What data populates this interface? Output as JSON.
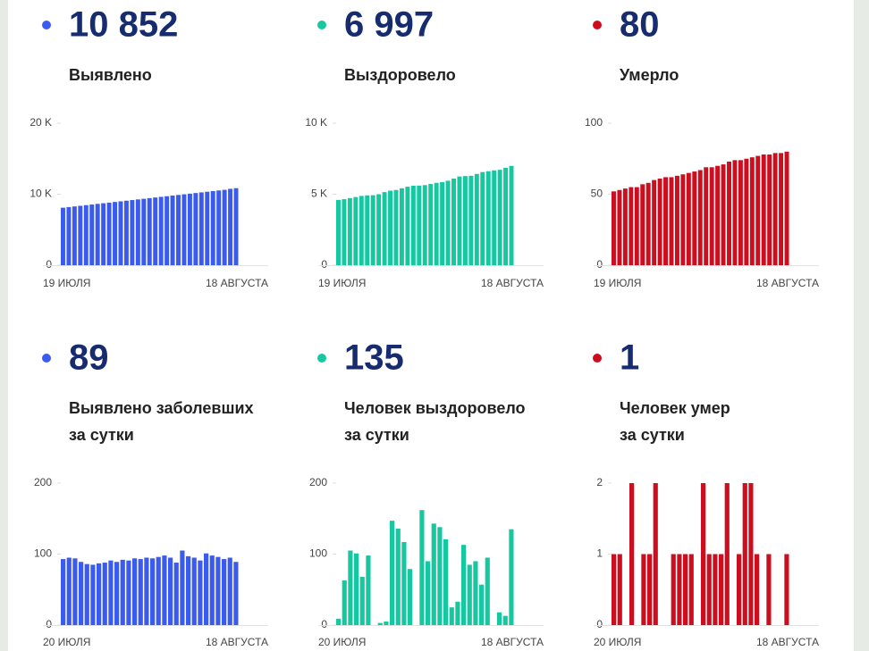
{
  "chart_data": [
    {
      "type": "bar",
      "headline": "10 852",
      "title_lines": [
        "Выявлено"
      ],
      "color": "#3b5bef",
      "categories": [
        "19 ИЮЛЯ",
        null,
        null,
        null,
        null,
        null,
        null,
        null,
        null,
        null,
        null,
        null,
        null,
        null,
        null,
        null,
        null,
        null,
        null,
        null,
        null,
        null,
        null,
        null,
        null,
        null,
        null,
        null,
        null,
        null,
        "18 АВГУСТА"
      ],
      "values": [
        8100,
        8190,
        8280,
        8370,
        8460,
        8550,
        8640,
        8730,
        8820,
        8910,
        9000,
        9090,
        9180,
        9270,
        9360,
        9450,
        9540,
        9630,
        9720,
        9810,
        9900,
        9990,
        10080,
        10170,
        10260,
        10350,
        10440,
        10530,
        10620,
        10763,
        10852
      ],
      "ylim": [
        0,
        20000
      ],
      "yticks": [
        0,
        {
          "value": 10000,
          "label": "10 K"
        },
        {
          "value": 20000,
          "label": "20 K"
        }
      ]
    },
    {
      "type": "bar",
      "headline": "6 997",
      "title_lines": [
        "Выздоровело"
      ],
      "color": "#15c8a0",
      "categories": [
        "19 ИЮЛЯ",
        null,
        null,
        null,
        null,
        null,
        null,
        null,
        null,
        null,
        null,
        null,
        null,
        null,
        null,
        null,
        null,
        null,
        null,
        null,
        null,
        null,
        null,
        null,
        null,
        null,
        null,
        null,
        null,
        null,
        "18 АВГУСТА"
      ],
      "values": [
        4600,
        4650,
        4720,
        4800,
        4880,
        4920,
        4930,
        5000,
        5150,
        5250,
        5300,
        5420,
        5530,
        5600,
        5610,
        5640,
        5720,
        5800,
        5850,
        5950,
        6100,
        6250,
        6280,
        6300,
        6430,
        6560,
        6620,
        6680,
        6720,
        6862,
        6997
      ],
      "ylim": [
        0,
        10000
      ],
      "yticks": [
        0,
        {
          "value": 5000,
          "label": "5 K"
        },
        {
          "value": 10000,
          "label": "10 K"
        }
      ]
    },
    {
      "type": "bar",
      "headline": "80",
      "title_lines": [
        "Умерло"
      ],
      "color": "#cc0e1e",
      "categories": [
        "19 ИЮЛЯ",
        null,
        null,
        null,
        null,
        null,
        null,
        null,
        null,
        null,
        null,
        null,
        null,
        null,
        null,
        null,
        null,
        null,
        null,
        null,
        null,
        null,
        null,
        null,
        null,
        null,
        null,
        null,
        null,
        null,
        "18 АВГУСТА"
      ],
      "values": [
        52,
        53,
        54,
        55,
        55,
        57,
        58,
        60,
        61,
        62,
        62,
        63,
        64,
        65,
        66,
        67,
        69,
        69,
        70,
        71,
        73,
        74,
        74,
        75,
        76,
        77,
        78,
        78,
        79,
        79,
        80
      ],
      "ylim": [
        0,
        100
      ],
      "yticks": [
        0,
        50,
        100
      ]
    },
    {
      "type": "bar",
      "headline": "89",
      "title_lines": [
        "Выявлено заболевших",
        "за сутки"
      ],
      "color": "#3b5bef",
      "categories": [
        "20 ИЮЛЯ",
        null,
        null,
        null,
        null,
        null,
        null,
        null,
        null,
        null,
        null,
        null,
        null,
        null,
        null,
        null,
        null,
        null,
        null,
        null,
        null,
        null,
        null,
        null,
        null,
        null,
        null,
        null,
        null,
        "18 АВГУСТА"
      ],
      "values": [
        93,
        95,
        94,
        89,
        86,
        85,
        87,
        88,
        91,
        89,
        92,
        91,
        94,
        93,
        95,
        94,
        96,
        98,
        95,
        88,
        105,
        97,
        95,
        91,
        101,
        98,
        96,
        93,
        95,
        89
      ],
      "ylim": [
        0,
        200
      ],
      "yticks": [
        0,
        100,
        200
      ]
    },
    {
      "type": "bar",
      "headline": "135",
      "title_lines": [
        "Человек выздоровело",
        "за сутки"
      ],
      "color": "#15c8a0",
      "categories": [
        "20 ИЮЛЯ",
        null,
        null,
        null,
        null,
        null,
        null,
        null,
        null,
        null,
        null,
        null,
        null,
        null,
        null,
        null,
        null,
        null,
        null,
        null,
        null,
        null,
        null,
        null,
        null,
        null,
        null,
        null,
        null,
        "18 АВГУСТА"
      ],
      "values": [
        9,
        63,
        105,
        101,
        68,
        98,
        0,
        3,
        5,
        147,
        136,
        117,
        79,
        0,
        162,
        90,
        143,
        138,
        121,
        25,
        33,
        113,
        85,
        90,
        57,
        95,
        0,
        18,
        13,
        135
      ],
      "ylim": [
        0,
        200
      ],
      "yticks": [
        0,
        100,
        200
      ]
    },
    {
      "type": "bar",
      "headline": "1",
      "title_lines": [
        "Человек умер",
        "за сутки"
      ],
      "color": "#cc0e1e",
      "categories": [
        "20 ИЮЛЯ",
        null,
        null,
        null,
        null,
        null,
        null,
        null,
        null,
        null,
        null,
        null,
        null,
        null,
        null,
        null,
        null,
        null,
        null,
        null,
        null,
        null,
        null,
        null,
        null,
        null,
        null,
        null,
        null,
        "18 АВГУСТА"
      ],
      "values": [
        1,
        1,
        0,
        2,
        0,
        1,
        1,
        2,
        0,
        0,
        1,
        1,
        1,
        1,
        0,
        2,
        1,
        1,
        1,
        2,
        0,
        1,
        2,
        2,
        1,
        0,
        1,
        0,
        0,
        1
      ],
      "ylim": [
        0,
        2
      ],
      "yticks": [
        0,
        1,
        2
      ]
    }
  ]
}
